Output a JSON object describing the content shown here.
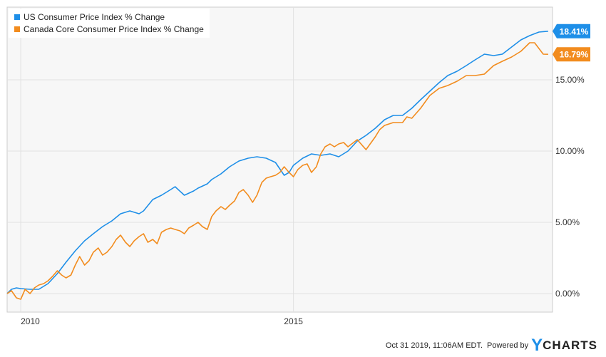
{
  "chart_data": {
    "type": "line",
    "title": "",
    "xlabel": "",
    "ylabel": "",
    "x_tick_labels": [
      "2010",
      "2015"
    ],
    "y_tick_labels": [
      "0.00%",
      "5.00%",
      "10.00%",
      "15.00%"
    ],
    "xlim": [
      2009.75,
      2019.75
    ],
    "ylim": [
      -1.3,
      20.1
    ],
    "grid": true,
    "legend_position": "top-left",
    "series": [
      {
        "name": "US Consumer Price Index % Change",
        "color": "#1e8fe8",
        "end_label": "18.41%",
        "x": [
          2009.75,
          2009.83,
          2009.92,
          2010.0,
          2010.17,
          2010.33,
          2010.5,
          2010.67,
          2010.83,
          2011.0,
          2011.17,
          2011.33,
          2011.5,
          2011.67,
          2011.83,
          2012.0,
          2012.17,
          2012.25,
          2012.42,
          2012.58,
          2012.75,
          2012.83,
          2013.0,
          2013.17,
          2013.25,
          2013.42,
          2013.5,
          2013.67,
          2013.83,
          2014.0,
          2014.17,
          2014.33,
          2014.5,
          2014.67,
          2014.83,
          2014.92,
          2015.0,
          2015.17,
          2015.33,
          2015.5,
          2015.67,
          2015.83,
          2016.0,
          2016.17,
          2016.33,
          2016.5,
          2016.67,
          2016.83,
          2017.0,
          2017.17,
          2017.33,
          2017.5,
          2017.67,
          2017.83,
          2018.0,
          2018.17,
          2018.33,
          2018.5,
          2018.67,
          2018.83,
          2019.0,
          2019.17,
          2019.33,
          2019.5,
          2019.67
        ],
        "values": [
          0.0,
          0.3,
          0.4,
          0.35,
          0.3,
          0.3,
          0.7,
          1.4,
          2.2,
          3.0,
          3.7,
          4.2,
          4.7,
          5.1,
          5.6,
          5.8,
          5.6,
          5.8,
          6.6,
          6.9,
          7.3,
          7.5,
          6.9,
          7.2,
          7.4,
          7.7,
          8.0,
          8.4,
          8.9,
          9.3,
          9.5,
          9.6,
          9.5,
          9.2,
          8.3,
          8.5,
          9.0,
          9.5,
          9.8,
          9.7,
          9.8,
          9.6,
          10.0,
          10.7,
          11.1,
          11.6,
          12.2,
          12.5,
          12.5,
          13.0,
          13.6,
          14.2,
          14.8,
          15.3,
          15.6,
          16.0,
          16.4,
          16.8,
          16.7,
          16.8,
          17.3,
          17.8,
          18.1,
          18.35,
          18.41
        ]
      },
      {
        "name": "Canada Core Consumer Price Index % Change",
        "color": "#f28c1e",
        "end_label": "16.79%",
        "x": [
          2009.75,
          2009.83,
          2009.92,
          2010.0,
          2010.08,
          2010.17,
          2010.25,
          2010.33,
          2010.42,
          2010.5,
          2010.58,
          2010.67,
          2010.75,
          2010.83,
          2010.92,
          2011.0,
          2011.08,
          2011.17,
          2011.25,
          2011.33,
          2011.42,
          2011.5,
          2011.58,
          2011.67,
          2011.75,
          2011.83,
          2011.92,
          2012.0,
          2012.08,
          2012.17,
          2012.25,
          2012.33,
          2012.42,
          2012.5,
          2012.58,
          2012.67,
          2012.75,
          2012.83,
          2012.92,
          2013.0,
          2013.08,
          2013.17,
          2013.25,
          2013.33,
          2013.42,
          2013.5,
          2013.58,
          2013.67,
          2013.75,
          2013.83,
          2013.92,
          2014.0,
          2014.08,
          2014.17,
          2014.25,
          2014.33,
          2014.42,
          2014.5,
          2014.58,
          2014.67,
          2014.75,
          2014.83,
          2014.92,
          2015.0,
          2015.08,
          2015.17,
          2015.25,
          2015.33,
          2015.42,
          2015.5,
          2015.58,
          2015.67,
          2015.75,
          2015.83,
          2015.92,
          2016.0,
          2016.17,
          2016.33,
          2016.5,
          2016.58,
          2016.67,
          2016.83,
          2017.0,
          2017.08,
          2017.17,
          2017.33,
          2017.5,
          2017.67,
          2017.83,
          2018.0,
          2018.17,
          2018.33,
          2018.5,
          2018.67,
          2018.83,
          2019.0,
          2019.17,
          2019.25,
          2019.33,
          2019.42,
          2019.5,
          2019.58,
          2019.67
        ],
        "values": [
          0.0,
          0.2,
          -0.3,
          -0.4,
          0.3,
          0.0,
          0.4,
          0.6,
          0.7,
          0.9,
          1.2,
          1.6,
          1.3,
          1.1,
          1.3,
          2.0,
          2.6,
          2.0,
          2.3,
          2.9,
          3.2,
          2.7,
          2.9,
          3.3,
          3.8,
          4.1,
          3.6,
          3.3,
          3.7,
          4.0,
          4.2,
          3.6,
          3.8,
          3.5,
          4.3,
          4.5,
          4.6,
          4.5,
          4.4,
          4.2,
          4.6,
          4.8,
          5.0,
          4.7,
          4.5,
          5.4,
          5.8,
          6.1,
          5.9,
          6.2,
          6.5,
          7.1,
          7.3,
          6.9,
          6.4,
          6.9,
          7.8,
          8.1,
          8.2,
          8.3,
          8.5,
          8.9,
          8.5,
          8.2,
          8.7,
          9.0,
          9.1,
          8.5,
          8.9,
          9.8,
          10.3,
          10.5,
          10.3,
          10.5,
          10.6,
          10.3,
          10.8,
          10.1,
          11.0,
          11.5,
          11.8,
          12.0,
          12.0,
          12.4,
          12.3,
          13.0,
          13.9,
          14.4,
          14.6,
          14.9,
          15.3,
          15.3,
          15.4,
          16.0,
          16.3,
          16.6,
          17.0,
          17.3,
          17.6,
          17.6,
          17.2,
          16.8,
          16.79
        ]
      }
    ]
  },
  "legend": {
    "items": [
      {
        "label": "US Consumer Price Index % Change",
        "color": "#1e8fe8"
      },
      {
        "label": "Canada Core Consumer Price Index % Change",
        "color": "#f28c1e"
      }
    ]
  },
  "footer": {
    "timestamp": "Oct 31 2019, 11:06AM EDT.",
    "powered_by": "Powered by",
    "brand_y": "Y",
    "brand_rest": "CHARTS"
  }
}
